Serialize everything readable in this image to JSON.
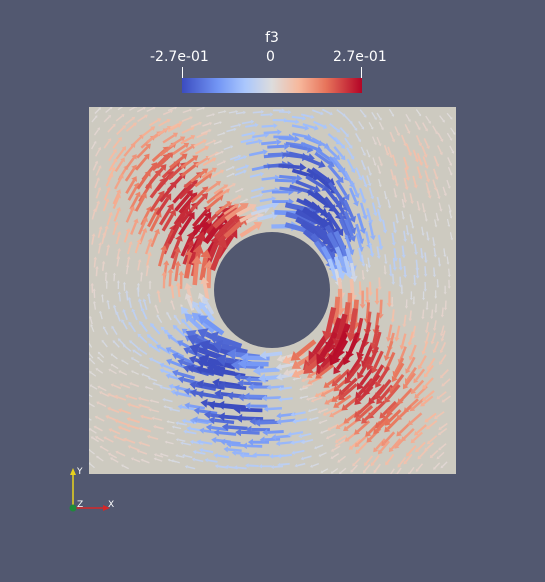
{
  "colorbar": {
    "title": "f3",
    "min_label": "-2.7e-01",
    "mid_label": "0",
    "max_label": "2.7e-01",
    "colormap": [
      "#3b4cc0",
      "#7396f5",
      "#aac7fd",
      "#dddcdc",
      "#f7b89c",
      "#e7745b",
      "#b40426"
    ]
  },
  "colors": {
    "background": "#525870",
    "domain": "#cdcac0",
    "hole": "#525870",
    "axis_x": "#d62728",
    "axis_y": "#e8d21d",
    "axis_z": "#1f8a3a"
  },
  "orientation_axes": {
    "x_label": "X",
    "y_label": "Y",
    "z_label": "Z"
  }
}
